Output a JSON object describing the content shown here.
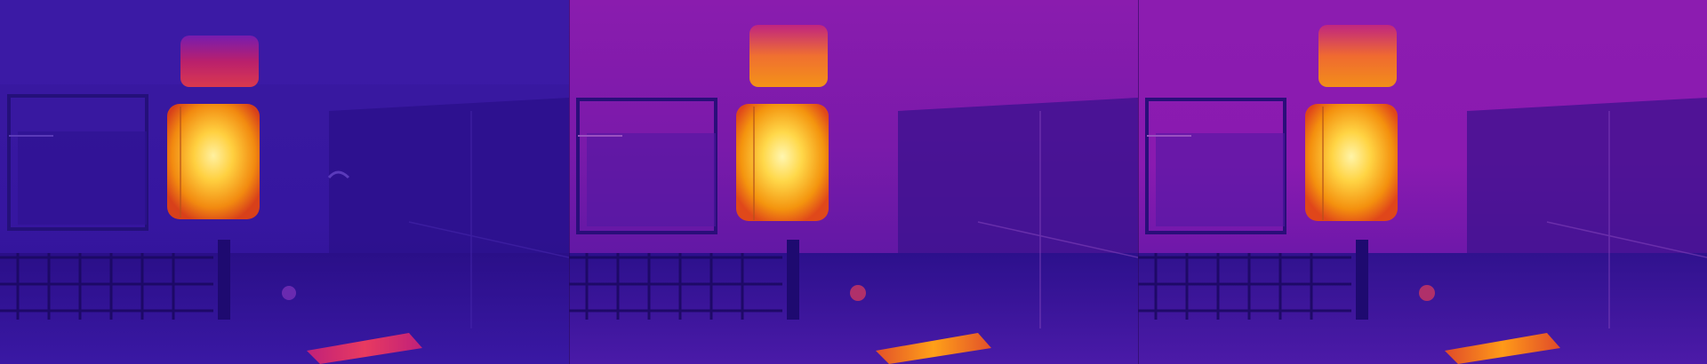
{
  "image": {
    "description_kind": "thermal-camera-triptych",
    "frame_count": 3,
    "palette": {
      "cold": "#2a0f8a",
      "cool": "#3e16a8",
      "mid": "#8a1aa8",
      "warm": "#c81a90",
      "hot": "#f08a10",
      "hottest": "#ffe060"
    },
    "frames": [
      {
        "id": "frame-1",
        "wall_tint": "#3a1aa0",
        "upper_wall_tint": "#3e1aa6"
      },
      {
        "id": "frame-2",
        "wall_tint": "#7a1aaa",
        "upper_wall_tint": "#8a1cae"
      },
      {
        "id": "frame-3",
        "wall_tint": "#8a1ab0",
        "upper_wall_tint": "#8c1cb0"
      }
    ]
  }
}
